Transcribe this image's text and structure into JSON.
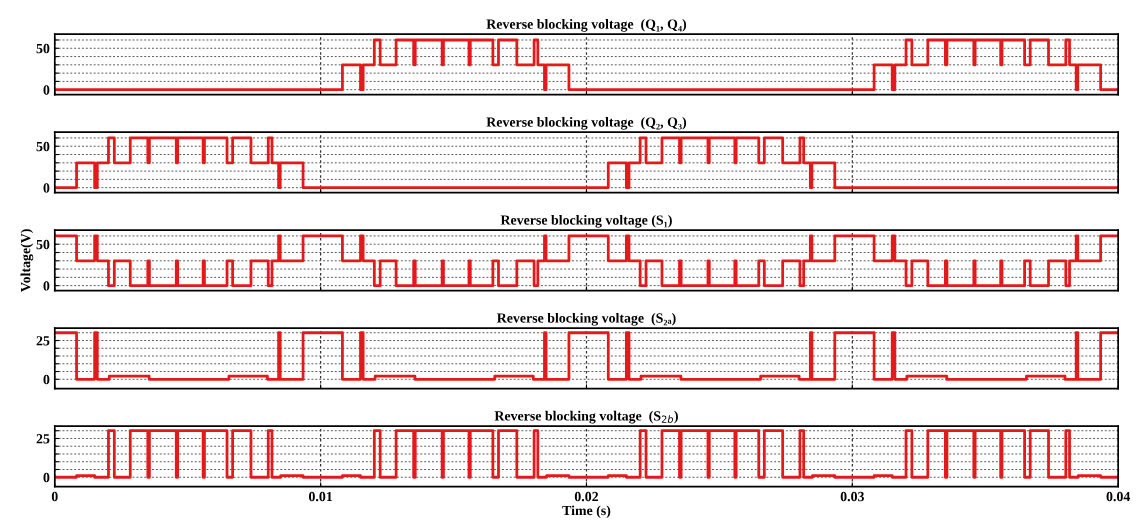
{
  "chart_data": [
    {
      "type": "step",
      "title": "Reverse blocking voltage  (Q₁, Q₄)",
      "xlim": [
        0,
        0.04
      ],
      "xticks": [
        0,
        0.01,
        0.02,
        0.03,
        0.04
      ],
      "ylim": [
        -6,
        67
      ],
      "yticks": [
        0,
        {
          "value": 10,
          "label": null
        },
        {
          "value": 20,
          "label": null
        },
        {
          "value": 30,
          "label": null
        },
        {
          "value": 40,
          "label": null
        },
        50,
        {
          "value": 60,
          "label": null
        }
      ],
      "grid": true,
      "tick_labels": "y",
      "line_style": "solid",
      "marker": "none",
      "series": [
        {
          "color": "#e31a1c",
          "x": [
            0,
            0.01082,
            0.0115,
            0.0116,
            0.01202,
            0.01224,
            0.01284,
            0.0135,
            0.01356,
            0.01457,
            0.01462,
            0.01558,
            0.01563,
            0.01648,
            0.01669,
            0.01738,
            0.01803,
            0.01817,
            0.01842,
            0.01848,
            0.01934,
            0.03082,
            0.0315,
            0.0316,
            0.03202,
            0.03224,
            0.03284,
            0.0335,
            0.03356,
            0.03457,
            0.03462,
            0.03558,
            0.03563,
            0.03648,
            0.03669,
            0.03738,
            0.03803,
            0.03817,
            0.03842,
            0.03848,
            0.03934,
            0.04
          ],
          "values": [
            0,
            30,
            0,
            30,
            60,
            30,
            60,
            30,
            60,
            30,
            60,
            30,
            60,
            30,
            60,
            30,
            60,
            30,
            0,
            30,
            0,
            30,
            0,
            30,
            60,
            30,
            60,
            30,
            60,
            30,
            60,
            30,
            60,
            30,
            60,
            30,
            60,
            30,
            0,
            30,
            0,
            0
          ]
        }
      ]
    },
    {
      "type": "step",
      "title": "Reverse blocking voltage  (Q₂, Q₃)",
      "xlim": [
        0,
        0.04
      ],
      "xticks": [
        0,
        0.01,
        0.02,
        0.03,
        0.04
      ],
      "ylim": [
        -6,
        67
      ],
      "yticks": [
        0,
        {
          "value": 10,
          "label": null
        },
        {
          "value": 20,
          "label": null
        },
        {
          "value": 30,
          "label": null
        },
        {
          "value": 40,
          "label": null
        },
        50,
        {
          "value": 60,
          "label": null
        }
      ],
      "grid": true,
      "tick_labels": "y",
      "line_style": "solid",
      "marker": "none",
      "series": [
        {
          "color": "#e31a1c",
          "x": [
            0,
            0.00082,
            0.0015,
            0.0016,
            0.00202,
            0.00224,
            0.00284,
            0.0035,
            0.00356,
            0.00457,
            0.00462,
            0.00558,
            0.00563,
            0.00648,
            0.00669,
            0.00738,
            0.00803,
            0.00817,
            0.00842,
            0.00848,
            0.00934,
            0.02082,
            0.0215,
            0.0216,
            0.02202,
            0.02224,
            0.02284,
            0.0235,
            0.02356,
            0.02457,
            0.02462,
            0.02558,
            0.02563,
            0.02648,
            0.02669,
            0.02738,
            0.02803,
            0.02817,
            0.02842,
            0.02848,
            0.02934,
            0.04
          ],
          "values": [
            0,
            30,
            0,
            30,
            60,
            30,
            60,
            30,
            60,
            30,
            60,
            30,
            60,
            30,
            60,
            30,
            60,
            30,
            0,
            30,
            0,
            30,
            0,
            30,
            60,
            30,
            60,
            30,
            60,
            30,
            60,
            30,
            60,
            30,
            60,
            30,
            60,
            30,
            0,
            30,
            0,
            0
          ]
        }
      ]
    },
    {
      "type": "step",
      "title": "Reverse blocking voltage (S₁)",
      "ylabel": "Voltage(V)",
      "xlim": [
        0,
        0.04
      ],
      "xticks": [
        0,
        0.01,
        0.02,
        0.03,
        0.04
      ],
      "ylim": [
        -6,
        67
      ],
      "yticks": [
        0,
        {
          "value": 10,
          "label": null
        },
        {
          "value": 20,
          "label": null
        },
        {
          "value": 30,
          "label": null
        },
        {
          "value": 40,
          "label": null
        },
        50,
        {
          "value": 60,
          "label": null
        }
      ],
      "grid": true,
      "tick_labels": "y",
      "line_style": "solid",
      "marker": "none",
      "series": [
        {
          "color": "#e31a1c",
          "x": [
            0,
            0.00082,
            0.0015,
            0.0016,
            0.00202,
            0.00224,
            0.00284,
            0.0035,
            0.00356,
            0.00457,
            0.00462,
            0.00558,
            0.00563,
            0.00648,
            0.00669,
            0.00738,
            0.00803,
            0.00817,
            0.00842,
            0.00848,
            0.00934,
            0.01082,
            0.0115,
            0.0116,
            0.01202,
            0.01224,
            0.01284,
            0.0135,
            0.01356,
            0.01457,
            0.01462,
            0.01558,
            0.01563,
            0.01648,
            0.01669,
            0.01738,
            0.01803,
            0.01817,
            0.01842,
            0.01848,
            0.01934,
            0.02082,
            0.0215,
            0.0216,
            0.02202,
            0.02224,
            0.02284,
            0.0235,
            0.02356,
            0.02457,
            0.02462,
            0.02558,
            0.02563,
            0.02648,
            0.02669,
            0.02738,
            0.02803,
            0.02817,
            0.02842,
            0.02848,
            0.02934,
            0.03082,
            0.0315,
            0.0316,
            0.03202,
            0.03224,
            0.03284,
            0.0335,
            0.03356,
            0.03457,
            0.03462,
            0.03558,
            0.03563,
            0.03648,
            0.03669,
            0.03738,
            0.03803,
            0.03817,
            0.03842,
            0.03848,
            0.03934,
            0.04
          ],
          "values": [
            60,
            30,
            60,
            30,
            0,
            30,
            0,
            30,
            0,
            30,
            0,
            30,
            0,
            30,
            0,
            30,
            0,
            30,
            60,
            30,
            60,
            30,
            60,
            30,
            0,
            30,
            0,
            30,
            0,
            30,
            0,
            30,
            0,
            30,
            0,
            30,
            0,
            30,
            60,
            30,
            60,
            30,
            60,
            30,
            0,
            30,
            0,
            30,
            0,
            30,
            0,
            30,
            0,
            30,
            0,
            30,
            0,
            30,
            60,
            30,
            60,
            30,
            60,
            30,
            0,
            30,
            0,
            30,
            0,
            30,
            0,
            30,
            0,
            30,
            0,
            30,
            0,
            30,
            60,
            30,
            60,
            60
          ]
        }
      ]
    },
    {
      "type": "step",
      "title": "Reverse blocking voltage  (S₂ₐ)",
      "xlim": [
        0,
        0.04
      ],
      "xticks": [
        0,
        0.01,
        0.02,
        0.03,
        0.04
      ],
      "ylim": [
        -6,
        33
      ],
      "yticks": [
        0,
        {
          "value": 5,
          "label": null
        },
        {
          "value": 10,
          "label": null
        },
        {
          "value": 15,
          "label": null
        },
        {
          "value": 20,
          "label": null
        },
        25,
        {
          "value": 30,
          "label": null
        }
      ],
      "grid": true,
      "tick_labels": "y",
      "line_style": "solid",
      "marker": "none",
      "series": [
        {
          "color": "#e31a1c",
          "x": [
            0,
            0.00082,
            0.0015,
            0.0016,
            0.00205,
            0.00355,
            0.00655,
            0.008,
            0.00842,
            0.00848,
            0.00934,
            0.01082,
            0.0115,
            0.0116,
            0.01205,
            0.01355,
            0.01655,
            0.018,
            0.01842,
            0.01848,
            0.01934,
            0.02082,
            0.0215,
            0.0216,
            0.02205,
            0.02355,
            0.02655,
            0.028,
            0.02842,
            0.02848,
            0.02934,
            0.03082,
            0.0315,
            0.0316,
            0.03205,
            0.03355,
            0.03655,
            0.038,
            0.03842,
            0.03848,
            0.03934,
            0.04
          ],
          "values": [
            30,
            0,
            30,
            0,
            2,
            0,
            2,
            0,
            30,
            0,
            30,
            0,
            30,
            0,
            2,
            0,
            2,
            0,
            30,
            0,
            30,
            0,
            30,
            0,
            2,
            0,
            2,
            0,
            30,
            0,
            30,
            0,
            30,
            0,
            2,
            0,
            2,
            0,
            30,
            0,
            30,
            30
          ]
        }
      ]
    },
    {
      "type": "step",
      "title": "Reverse blocking voltage  (S$_{2b}$)",
      "xlabel": "Time (s)",
      "xlim": [
        0,
        0.04
      ],
      "xticks": [
        0,
        0.01,
        0.02,
        0.03,
        0.04
      ],
      "ylim": [
        -6,
        33
      ],
      "yticks": [
        0,
        {
          "value": 5,
          "label": null
        },
        {
          "value": 10,
          "label": null
        },
        {
          "value": 15,
          "label": null
        },
        {
          "value": 20,
          "label": null
        },
        25,
        {
          "value": 30,
          "label": null
        }
      ],
      "grid": true,
      "line_style": "solid",
      "marker": "none",
      "series": [
        {
          "color": "#e31a1c",
          "x": [
            0,
            0.00082,
            0.0015,
            0.00202,
            0.00224,
            0.00284,
            0.0035,
            0.00356,
            0.00457,
            0.00462,
            0.00558,
            0.00563,
            0.00648,
            0.00669,
            0.00738,
            0.00803,
            0.00817,
            0.0085,
            0.00934,
            0.01082,
            0.0115,
            0.01202,
            0.01224,
            0.01284,
            0.0135,
            0.01356,
            0.01457,
            0.01462,
            0.01558,
            0.01563,
            0.01648,
            0.01669,
            0.01738,
            0.01803,
            0.01817,
            0.0185,
            0.01934,
            0.02082,
            0.0215,
            0.02202,
            0.02224,
            0.02284,
            0.0235,
            0.02356,
            0.02457,
            0.02462,
            0.02558,
            0.02563,
            0.02648,
            0.02669,
            0.02738,
            0.02803,
            0.02817,
            0.0285,
            0.02934,
            0.03082,
            0.0315,
            0.03202,
            0.03224,
            0.03284,
            0.0335,
            0.03356,
            0.03457,
            0.03462,
            0.03558,
            0.03563,
            0.03648,
            0.03669,
            0.03738,
            0.03803,
            0.03817,
            0.0385,
            0.03934,
            0.04
          ],
          "values": [
            0,
            1,
            0,
            30,
            0,
            30,
            0,
            30,
            0,
            30,
            0,
            30,
            0,
            30,
            0,
            30,
            0,
            1,
            0,
            1,
            0,
            30,
            0,
            30,
            0,
            30,
            0,
            30,
            0,
            30,
            0,
            30,
            0,
            30,
            0,
            1,
            0,
            1,
            0,
            30,
            0,
            30,
            0,
            30,
            0,
            30,
            0,
            30,
            0,
            30,
            0,
            30,
            0,
            1,
            0,
            1,
            0,
            30,
            0,
            30,
            0,
            30,
            0,
            30,
            0,
            30,
            0,
            30,
            0,
            30,
            0,
            1,
            0,
            0
          ]
        }
      ]
    }
  ]
}
